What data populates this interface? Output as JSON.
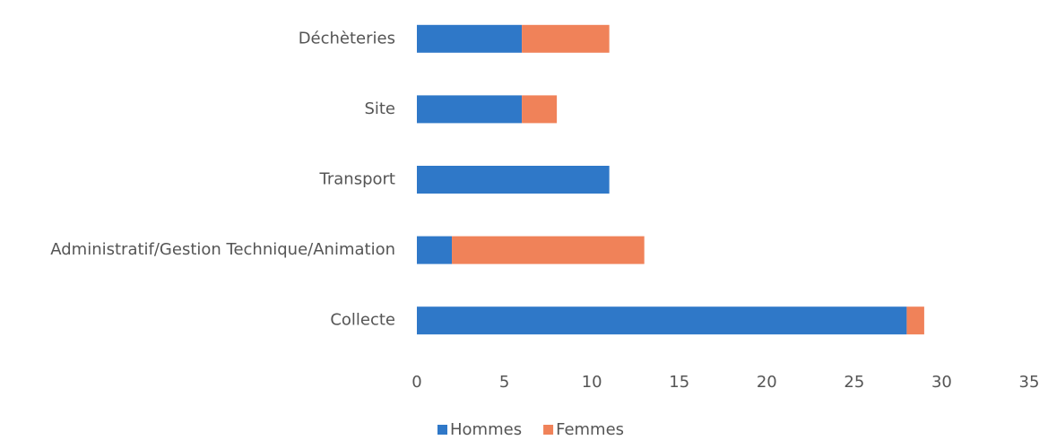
{
  "chart_data": {
    "type": "bar",
    "orientation": "horizontal",
    "stacked": true,
    "categories": [
      "Déchèteries",
      "Site",
      "Transport",
      "Administratif/Gestion Technique/Animation",
      "Collecte"
    ],
    "series": [
      {
        "name": "Hommes",
        "color": "#2f78c8",
        "values": [
          6,
          6,
          11,
          2,
          28
        ]
      },
      {
        "name": "Femmes",
        "color": "#f08259",
        "values": [
          5,
          2,
          0,
          11,
          1
        ]
      }
    ],
    "xlim": [
      0,
      35
    ],
    "xticks": [
      0,
      5,
      10,
      15,
      20,
      25,
      30,
      35
    ],
    "grid": false,
    "legend": "bottom"
  }
}
